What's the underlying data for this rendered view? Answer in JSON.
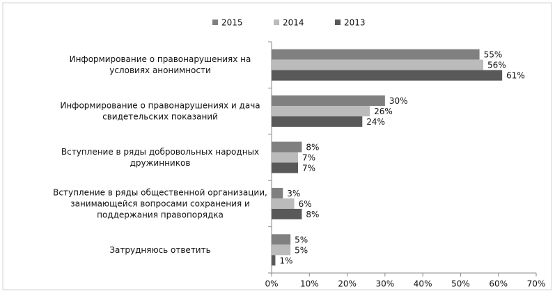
{
  "chart_data": {
    "type": "hbar",
    "categories": [
      "Информирование о правонарушениях на\nусловиях анонимности",
      "Информирование о правонарушениях и дача\nсвидетельских показаний",
      "Вступление в ряды добровольных народных\nдружинников",
      "Вступление в ряды общественной организации,\nзанимающейся вопросами сохранения и\nподдержания правопорядка",
      "Затрудняюсь ответить"
    ],
    "series": [
      {
        "name": "2015",
        "color": "#808080",
        "values": [
          55,
          30,
          8,
          3,
          5
        ],
        "value_labels": [
          "55%",
          "30%",
          "8%",
          "3%",
          "5%"
        ]
      },
      {
        "name": "2014",
        "color": "#bbbbbb",
        "values": [
          56,
          26,
          7,
          6,
          5
        ],
        "value_labels": [
          "56%",
          "26%",
          "7%",
          "6%",
          "5%"
        ]
      },
      {
        "name": "2013",
        "color": "#595959",
        "values": [
          61,
          24,
          7,
          8,
          1
        ],
        "value_labels": [
          "61%",
          "24%",
          "7%",
          "8%",
          "1%"
        ]
      }
    ],
    "xlim": [
      0,
      70
    ],
    "xticks": [
      {
        "value": 0,
        "label": "0%"
      },
      {
        "value": 10,
        "label": "10%"
      },
      {
        "value": 20,
        "label": "20%"
      },
      {
        "value": 30,
        "label": "30%"
      },
      {
        "value": 40,
        "label": "40%"
      },
      {
        "value": 50,
        "label": "50%"
      },
      {
        "value": 60,
        "label": "60%"
      },
      {
        "value": 70,
        "label": "70%"
      }
    ],
    "legend": "top",
    "grid": false
  }
}
